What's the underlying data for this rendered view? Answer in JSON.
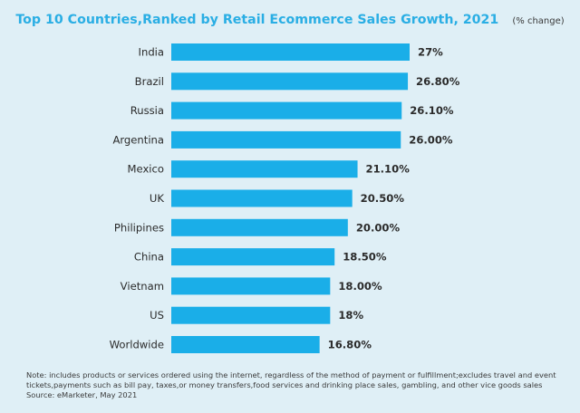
{
  "header": {
    "title": "Top 10 Countries,Ranked by Retail Ecommerce Sales Growth, 2021",
    "subtitle": "(% change)"
  },
  "chart_data": {
    "type": "bar",
    "orientation": "horizontal",
    "title": "Top 10 Countries,Ranked by Retail Ecommerce Sales Growth, 2021",
    "subtitle": "(% change)",
    "categories": [
      "India",
      "Brazil",
      "Russia",
      "Argentina",
      "Mexico",
      "UK",
      "Philipines",
      "China",
      "Vietnam",
      "US",
      "Worldwide"
    ],
    "values": [
      27,
      26.8,
      26.1,
      26.0,
      21.1,
      20.5,
      20.0,
      18.5,
      18.0,
      18,
      16.8
    ],
    "value_labels": [
      "27%",
      "26.80%",
      "26.10%",
      "26.00%",
      "21.10%",
      "20.50%",
      "20.00%",
      "18.50%",
      "18.00%",
      "18%",
      "16.80%"
    ],
    "bar_color": "#1aaee8",
    "xlim": [
      0,
      27
    ],
    "grid": false,
    "legend": "none"
  },
  "notes": {
    "line1": "Note: includes products or services ordered using the internet, regardless of the method of payment or fulfillment;excludes travel and event",
    "line2": "tickets,payments such as bill pay, taxes,or money transfers,food services and drinking place sales, gambling, and other vice goods sales",
    "source": "Source: eMarketer, May 2021"
  }
}
